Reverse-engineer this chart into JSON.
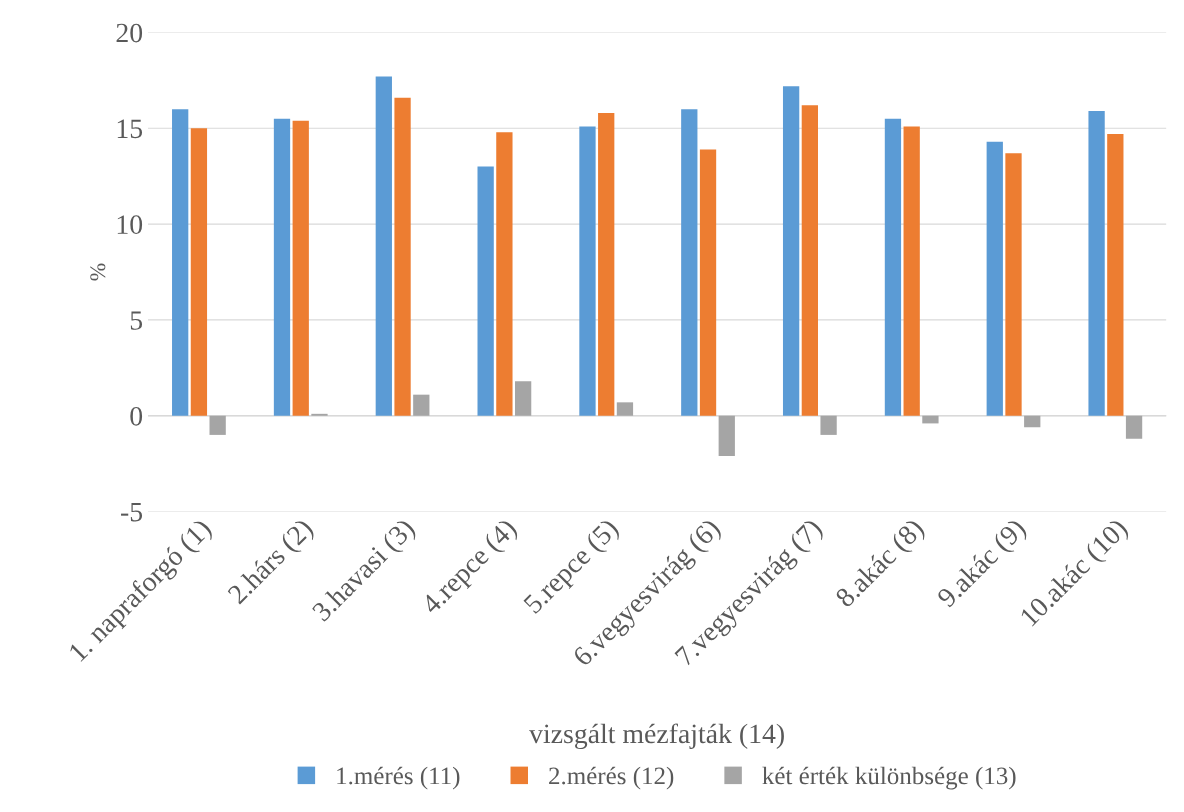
{
  "chart_data": {
    "type": "bar",
    "xlabel": "vizsgált mézfajták (14)",
    "ylabel": "%",
    "categories": [
      "1. napraforgó (1)",
      "2.hárs (2)",
      "3.havasi (3)",
      "4.repce (4)",
      "5.repce (5)",
      "6.vegyesvirág (6)",
      "7.vegyesvirág (7)",
      "8.akác (8)",
      "9.akác (9)",
      "10.akác (10)"
    ],
    "series": [
      {
        "name": "1.mérés (11)",
        "color": "#5b9bd5",
        "values": [
          16.0,
          15.5,
          17.7,
          13.0,
          15.1,
          16.0,
          17.2,
          15.5,
          14.3,
          15.9
        ]
      },
      {
        "name": "2.mérés (12)",
        "color": "#ed7d31",
        "values": [
          15.0,
          15.4,
          16.6,
          14.8,
          15.8,
          13.9,
          16.2,
          15.1,
          13.7,
          14.7
        ]
      },
      {
        "name": "két érték különbsége (13)",
        "color": "#a5a5a5",
        "values": [
          -1.0,
          0.1,
          1.1,
          1.8,
          0.7,
          -2.1,
          -1.0,
          -0.4,
          -0.6,
          -1.2
        ]
      }
    ],
    "ylim": [
      -5,
      20
    ],
    "yticks": [
      -5,
      0,
      5,
      10,
      15,
      20
    ],
    "grid": "y",
    "legend": "bottom"
  }
}
